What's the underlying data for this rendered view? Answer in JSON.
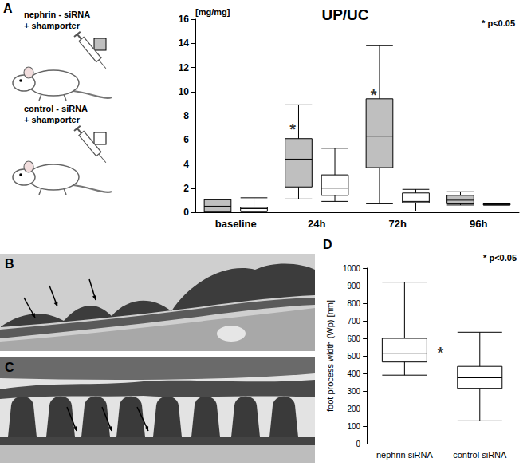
{
  "chart_data": [
    {
      "panel": "A",
      "type": "boxplot",
      "title": "UP/UC",
      "ylabel": "[mg/mg]",
      "note": "* p<0.05",
      "categories": [
        "baseline",
        "24h",
        "72h",
        "96h"
      ],
      "series": [
        {
          "name": "nephrin - siRNA + shamporter",
          "color": "#bfbfbf",
          "values": [
            [
              0,
              0,
              0.5,
              1.05,
              1.05
            ],
            [
              1.1,
              2.1,
              4.4,
              6.1,
              8.9
            ],
            [
              0.7,
              3.7,
              6.3,
              9.4,
              13.8
            ],
            [
              0.6,
              0.7,
              1.0,
              1.4,
              1.7
            ]
          ]
        },
        {
          "name": "control - siRNA + shamporter",
          "color": "#ffffff",
          "values": [
            [
              0.05,
              0.1,
              0.3,
              0.4,
              1.2
            ],
            [
              0.9,
              1.4,
              2.0,
              3.1,
              5.3
            ],
            [
              0.1,
              0.8,
              0.9,
              1.6,
              1.9
            ],
            [
              0.6,
              0.6,
              0.65,
              0.7,
              0.7
            ]
          ]
        }
      ],
      "annotations": [
        {
          "category": "24h",
          "series": "nephrin - siRNA + shamporter",
          "y": 6.9,
          "text": "*"
        },
        {
          "category": "72h",
          "series": "nephrin - siRNA + shamporter",
          "y": 9.7,
          "text": "*"
        }
      ],
      "ylim": [
        0,
        16
      ],
      "yticks": [
        0,
        2,
        4,
        6,
        8,
        10,
        12,
        14,
        16
      ],
      "grid": false,
      "legend": "left"
    },
    {
      "panel": "D",
      "type": "boxplot",
      "ylabel": "foot process width (Wp) [nm]",
      "note": "* p<0.05",
      "categories": [
        "nephrin siRNA",
        "control siRNA"
      ],
      "values": [
        [
          390,
          465,
          515,
          600,
          920
        ],
        [
          130,
          315,
          375,
          440,
          635
        ]
      ],
      "color": "#ffffff",
      "annotations": [
        {
          "category": "nephrin siRNA",
          "y": 520,
          "text": "*"
        }
      ],
      "ylim": [
        0,
        1000
      ],
      "yticks": [
        0,
        100,
        200,
        300,
        400,
        500,
        600,
        700,
        800,
        900,
        1000
      ],
      "grid": false
    }
  ],
  "images": [
    {
      "panel": "B"
    },
    {
      "panel": "C"
    }
  ]
}
